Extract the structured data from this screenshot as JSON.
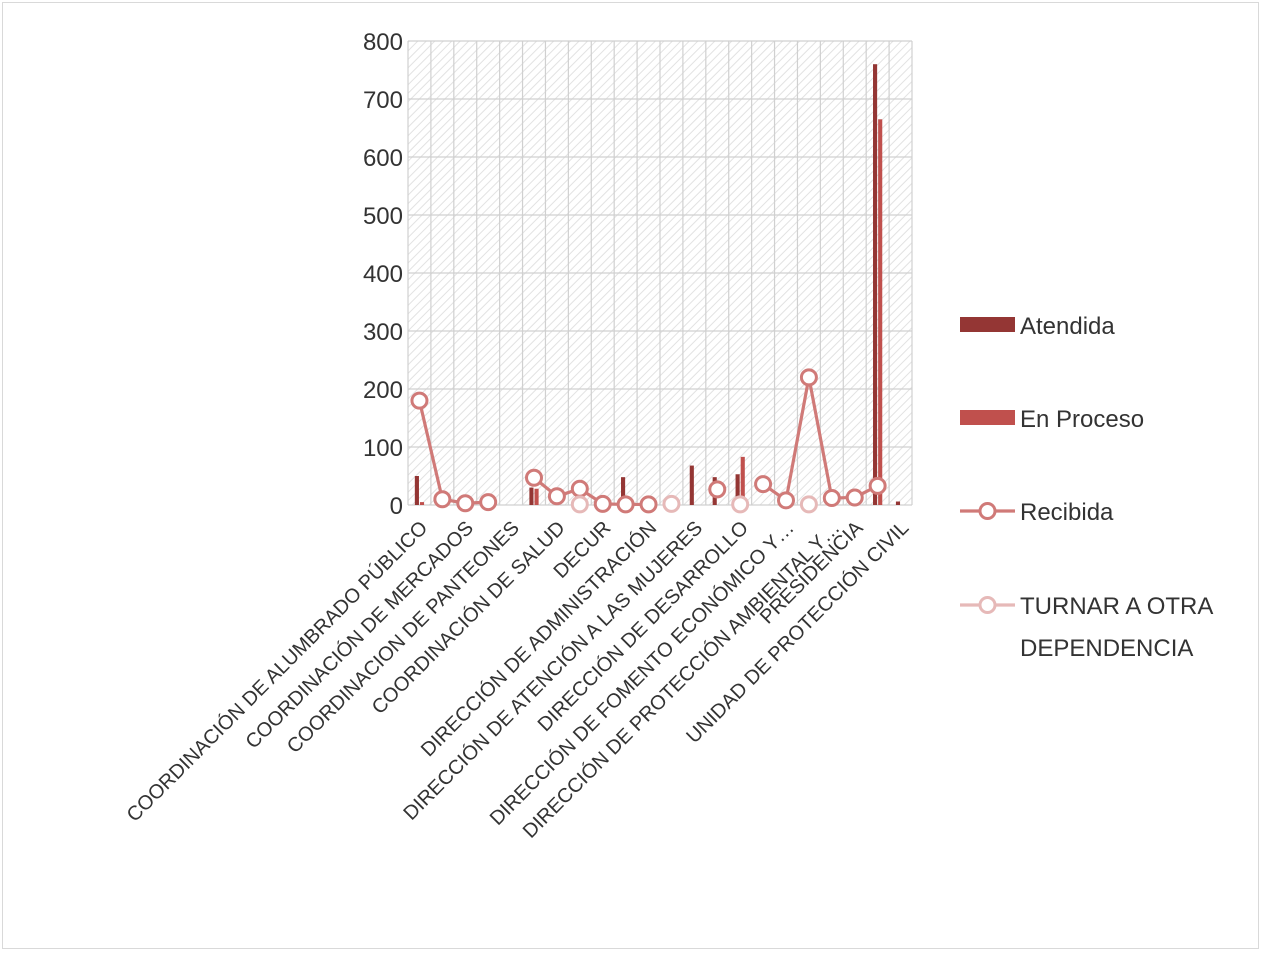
{
  "chart_data": {
    "type": "bar",
    "title": "",
    "xlabel": "",
    "ylabel": "",
    "ylim": [
      0,
      800
    ],
    "yticks": [
      "0",
      "100",
      "200",
      "300",
      "400",
      "500",
      "600",
      "700",
      "800"
    ],
    "grid": true,
    "legend_position": "right",
    "categories": [
      "COORDINACIÓN DE ALUMBRADO PÚBLICO",
      "COORDINACIÓN DE MERCADOS",
      "COORDINACION DE PANTEONES",
      "COORDINACIÓN DE SALUD",
      "DECUR",
      "DIRECCIÓN DE ADMINISTRACIÓN",
      "DIRECCIÓN DE ATENCIÓN A LAS MUJERES",
      "DIRECCIÓN DE DESARROLLO",
      "DIRECCIÓN DE FOMENTO ECONÓMICO Y…",
      "DIRECCIÓN DE PROTECCIÓN AMBIENTAL Y…",
      "PRESIDENCIA",
      "UNIDAD DE PROTECCIÓN CIVIL"
    ],
    "x_slots": 22,
    "label_slots": [
      1,
      3,
      5,
      7,
      9,
      11,
      13,
      15,
      17,
      19,
      20,
      22
    ],
    "series": [
      {
        "name": "Atendida",
        "kind": "bar",
        "color": "#943634",
        "points": [
          {
            "slot": 1,
            "value": 50
          },
          {
            "slot": 6,
            "value": 30
          },
          {
            "slot": 10,
            "value": 48
          },
          {
            "slot": 13,
            "value": 68
          },
          {
            "slot": 14,
            "value": 48
          },
          {
            "slot": 15,
            "value": 53
          },
          {
            "slot": 21,
            "value": 760
          },
          {
            "slot": 22,
            "value": 6
          }
        ]
      },
      {
        "name": "En Proceso",
        "kind": "bar",
        "color": "#c0504d",
        "points": [
          {
            "slot": 1,
            "value": 5
          },
          {
            "slot": 6,
            "value": 28
          },
          {
            "slot": 15,
            "value": 83
          },
          {
            "slot": 21,
            "value": 665
          }
        ]
      },
      {
        "name": "Recibida",
        "kind": "line",
        "color": "#d07a78",
        "points": [
          {
            "slot": 1,
            "value": 180
          },
          {
            "slot": 2,
            "value": 10
          },
          {
            "slot": 3,
            "value": 3
          },
          {
            "slot": 4,
            "value": 5
          },
          {
            "slot": 6,
            "value": 47
          },
          {
            "slot": 7,
            "value": 15
          },
          {
            "slot": 8,
            "value": 28
          },
          {
            "slot": 9,
            "value": 2
          },
          {
            "slot": 10,
            "value": 1
          },
          {
            "slot": 11,
            "value": 1
          },
          {
            "slot": 14,
            "value": 27
          },
          {
            "slot": 16,
            "value": 36
          },
          {
            "slot": 17,
            "value": 8
          },
          {
            "slot": 18,
            "value": 220
          },
          {
            "slot": 19,
            "value": 12
          },
          {
            "slot": 20,
            "value": 13
          },
          {
            "slot": 21,
            "value": 33
          }
        ]
      },
      {
        "name": "TURNAR A OTRA DEPENDENCIA",
        "kind": "line",
        "color": "#e6b9b8",
        "points": [
          {
            "slot": 8,
            "value": 1
          },
          {
            "slot": 12,
            "value": 2
          },
          {
            "slot": 15,
            "value": 1
          },
          {
            "slot": 18,
            "value": 1
          }
        ]
      }
    ],
    "legend": [
      {
        "label": "Atendida",
        "symbol": "bar",
        "color": "#943634"
      },
      {
        "label": "En Proceso",
        "symbol": "bar",
        "color": "#c0504d"
      },
      {
        "label": "Recibida",
        "symbol": "line-marker",
        "color": "#d07a78"
      },
      {
        "label": "TURNAR A OTRA",
        "label2": "DEPENDENCIA",
        "symbol": "line-marker",
        "color": "#e6b9b8"
      }
    ]
  }
}
